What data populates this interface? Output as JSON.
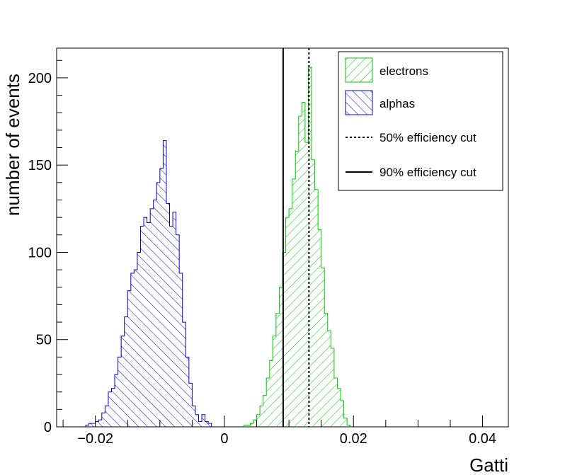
{
  "chart_data": {
    "type": "histogram",
    "title": "",
    "xlabel": "Gatti",
    "ylabel": "number of events",
    "xlim": [
      -0.026,
      0.044
    ],
    "ylim": [
      0,
      217
    ],
    "bin_width": 0.0005,
    "x_ticks": [
      -0.02,
      0,
      0.02,
      0.04
    ],
    "x_tick_labels": [
      "−0.02",
      "0",
      "0.02",
      "0.04"
    ],
    "y_ticks": [
      0,
      50,
      100,
      150,
      200
    ],
    "y_tick_labels": [
      "0",
      "50",
      "100",
      "150",
      "200"
    ],
    "grid": false,
    "legend_position": "top-right",
    "series": [
      {
        "name": "alphas",
        "color": "#0000cc",
        "fill": "hatch-diagonal",
        "bin_start": -0.0215,
        "counts": [
          1,
          2,
          2,
          3,
          4,
          8,
          12,
          20,
          22,
          30,
          40,
          52,
          63,
          78,
          88,
          90,
          100,
          115,
          120,
          117,
          125,
          130,
          140,
          148,
          164,
          128,
          115,
          123,
          110,
          88,
          60,
          40,
          25,
          12,
          7,
          3,
          7,
          3,
          2
        ]
      },
      {
        "name": "electrons",
        "color": "#00cc00",
        "fill": "hatch-diagonal",
        "bin_start": 0.003,
        "counts": [
          1,
          1,
          2,
          4,
          7,
          12,
          18,
          28,
          38,
          52,
          65,
          80,
          100,
          120,
          125,
          142,
          158,
          178,
          186,
          163,
          206,
          153,
          136,
          113,
          91,
          65,
          55,
          45,
          28,
          22,
          15,
          5,
          1
        ]
      }
    ],
    "cuts": [
      {
        "name": "50% efficiency cut",
        "x": 0.0131,
        "style": "dotted"
      },
      {
        "name": "90% efficiency cut",
        "x": 0.0091,
        "style": "solid"
      }
    ],
    "legend": [
      {
        "label": "electrons",
        "kind": "hatch",
        "color": "#00cc00"
      },
      {
        "label": "alphas",
        "kind": "hatch",
        "color": "#0000cc"
      },
      {
        "label": "50% efficiency cut",
        "kind": "dotted-line",
        "color": "#000000"
      },
      {
        "label": "90% efficiency cut",
        "kind": "solid-line",
        "color": "#000000"
      }
    ]
  }
}
